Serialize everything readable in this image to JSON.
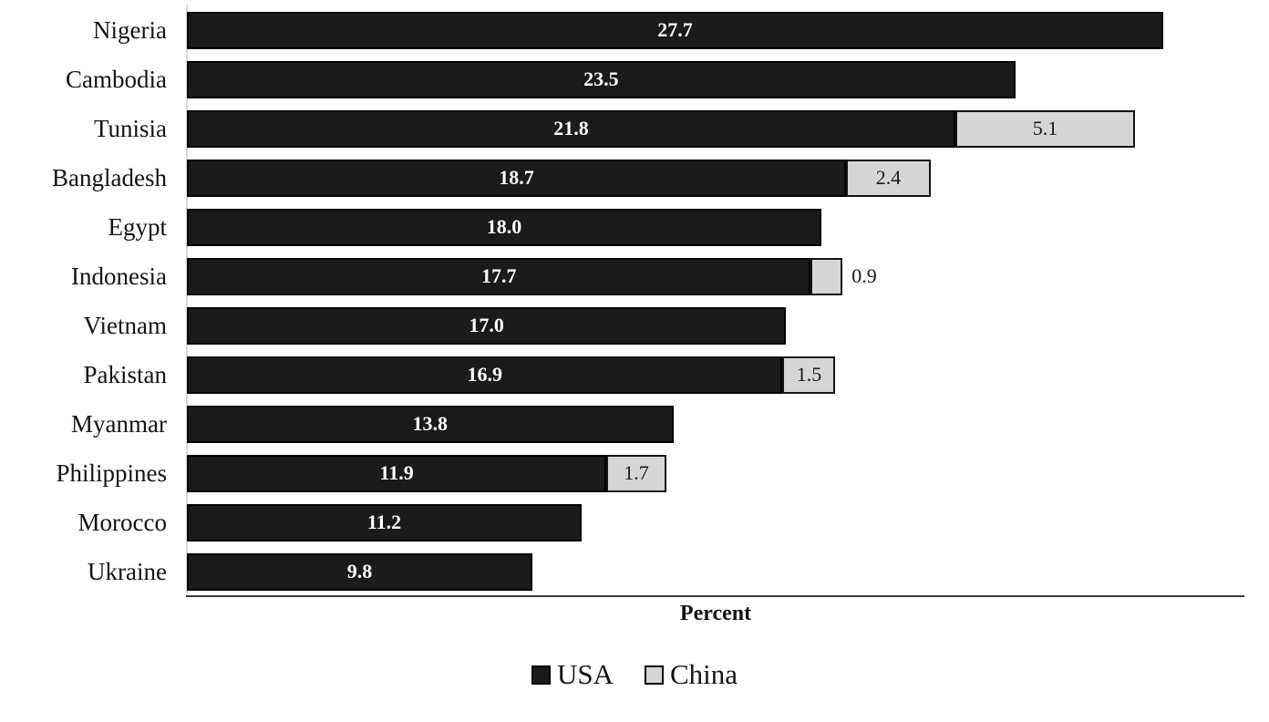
{
  "chart_data": {
    "type": "bar",
    "orientation": "horizontal",
    "stacked": true,
    "title": "",
    "xlabel": "Percent",
    "xlim": [
      0,
      30
    ],
    "grid": false,
    "legend_position": "bottom-center",
    "categories": [
      "Nigeria",
      "Cambodia",
      "Tunisia",
      "Bangladesh",
      "Egypt",
      "Indonesia",
      "Vietnam",
      "Pakistan",
      "Myanmar",
      "Philippines",
      "Morocco",
      "Ukraine"
    ],
    "series": [
      {
        "name": "USA",
        "color": "#1b1b1b",
        "border_color": "#000000",
        "label_color": "#ffffff",
        "values": [
          27.7,
          23.5,
          21.8,
          18.7,
          18.0,
          17.7,
          17.0,
          16.9,
          13.8,
          11.9,
          11.2,
          9.8
        ],
        "labels": [
          "27.7",
          "23.5",
          "21.8",
          "18.7",
          "18.0",
          "17.7",
          "17.0",
          "16.9",
          "13.8",
          "11.9",
          "11.2",
          "9.8"
        ]
      },
      {
        "name": "China",
        "color": "#d6d6d6",
        "border_color": "#141414",
        "label_color": "#1a1a1a",
        "values": [
          null,
          null,
          5.1,
          2.4,
          null,
          0.9,
          null,
          1.5,
          null,
          1.7,
          null,
          null
        ],
        "labels": [
          "",
          "",
          "5.1",
          "2.4",
          "",
          "0.9",
          "",
          "1.5",
          "",
          "1.7",
          "",
          ""
        ]
      }
    ],
    "axis_colors": {
      "left_line": "#d9d9d9",
      "bottom_line": "#3b3b3b"
    }
  }
}
